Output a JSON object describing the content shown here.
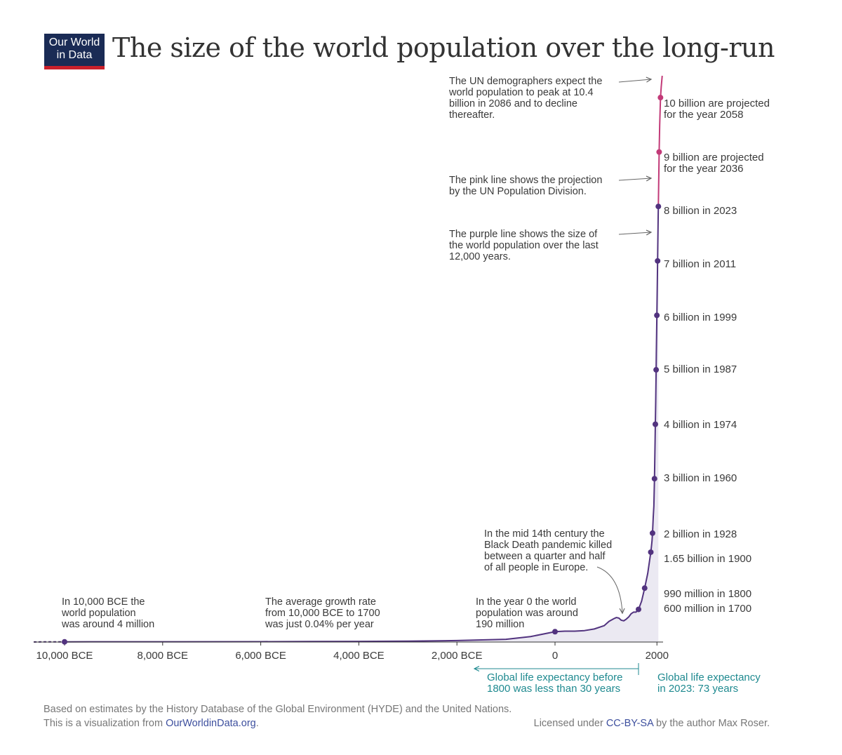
{
  "logo": {
    "line1": "Our World",
    "line2": "in Data"
  },
  "title": "The size of the world population over the long-run",
  "chart_data": {
    "type": "line",
    "xlim": [
      -11000,
      2100
    ],
    "ylim": [
      0,
      10.4
    ],
    "x_ticks": [
      {
        "x": -10000,
        "label": "10,000 BCE"
      },
      {
        "x": -8000,
        "label": "8,000 BCE"
      },
      {
        "x": -6000,
        "label": "6,000 BCE"
      },
      {
        "x": -4000,
        "label": "4,000 BCE"
      },
      {
        "x": -2000,
        "label": "2,000 BCE"
      },
      {
        "x": 0,
        "label": "0"
      },
      {
        "x": 2000,
        "label": "2000"
      }
    ],
    "series": [
      {
        "color": "#52337f",
        "points": [
          [
            -11000,
            0.002
          ],
          [
            -10000,
            0.004
          ],
          [
            -8000,
            0.005
          ],
          [
            -6000,
            0.007
          ],
          [
            -5000,
            0.009
          ],
          [
            -4000,
            0.012
          ],
          [
            -3000,
            0.016
          ],
          [
            -2000,
            0.027
          ],
          [
            -1500,
            0.038
          ],
          [
            -1000,
            0.05
          ],
          [
            -500,
            0.1
          ],
          [
            0,
            0.19
          ],
          [
            200,
            0.2
          ],
          [
            400,
            0.2
          ],
          [
            600,
            0.21
          ],
          [
            800,
            0.24
          ],
          [
            1000,
            0.3
          ],
          [
            1100,
            0.38
          ],
          [
            1200,
            0.43
          ],
          [
            1250,
            0.45
          ],
          [
            1300,
            0.44
          ],
          [
            1350,
            0.4
          ],
          [
            1400,
            0.39
          ],
          [
            1450,
            0.42
          ],
          [
            1500,
            0.46
          ],
          [
            1550,
            0.52
          ],
          [
            1600,
            0.55
          ],
          [
            1650,
            0.55
          ],
          [
            1700,
            0.6
          ],
          [
            1750,
            0.75
          ],
          [
            1800,
            0.99
          ],
          [
            1850,
            1.26
          ],
          [
            1900,
            1.65
          ],
          [
            1910,
            1.75
          ],
          [
            1920,
            1.86
          ],
          [
            1928,
            2.0
          ],
          [
            1940,
            2.3
          ],
          [
            1950,
            2.5
          ],
          [
            1960,
            3.0
          ],
          [
            1970,
            3.7
          ],
          [
            1974,
            4.0
          ],
          [
            1980,
            4.4
          ],
          [
            1987,
            5.0
          ],
          [
            1990,
            5.3
          ],
          [
            1999,
            6.0
          ],
          [
            2005,
            6.5
          ],
          [
            2011,
            7.0
          ],
          [
            2020,
            7.8
          ],
          [
            2023,
            8.0
          ]
        ]
      },
      {
        "color": "#c23a78",
        "points": [
          [
            2023,
            8.0
          ],
          [
            2036,
            9.0
          ],
          [
            2045,
            9.5
          ],
          [
            2058,
            10.0
          ],
          [
            2070,
            10.2
          ],
          [
            2086,
            10.4
          ]
        ]
      }
    ],
    "milestones": [
      {
        "x": 1700,
        "y": 0.6,
        "label": "600 million in 1700",
        "color": "#52337f"
      },
      {
        "x": 1800,
        "y": 0.99,
        "label": "990 million in 1800",
        "color": "#52337f"
      },
      {
        "x": 1900,
        "y": 1.65,
        "label": "1.65 billion in 1900",
        "color": "#52337f"
      },
      {
        "x": 1928,
        "y": 2.0,
        "label": "2 billion in 1928",
        "color": "#52337f"
      },
      {
        "x": 1960,
        "y": 3.0,
        "label": "3 billion in 1960",
        "color": "#52337f"
      },
      {
        "x": 1974,
        "y": 4.0,
        "label": "4 billion in 1974",
        "color": "#52337f"
      },
      {
        "x": 1987,
        "y": 5.0,
        "label": "5 billion in 1987",
        "color": "#52337f"
      },
      {
        "x": 1999,
        "y": 6.0,
        "label": "6 billion in 1999",
        "color": "#52337f"
      },
      {
        "x": 2011,
        "y": 7.0,
        "label": "7 billion in 2011",
        "color": "#52337f"
      },
      {
        "x": 2023,
        "y": 8.0,
        "label": "8 billion in 2023",
        "color": "#52337f"
      },
      {
        "x": 2036,
        "y": 9.0,
        "label": "9 billion are projected\nfor the year 2036",
        "color": "#c23a78"
      },
      {
        "x": 2058,
        "y": 10.0,
        "label": "10 billion are projected\nfor the year 2058",
        "color": "#c23a78"
      }
    ],
    "extra_points": [
      {
        "x": -10000,
        "y": 0.004
      },
      {
        "x": 0,
        "y": 0.19
      }
    ],
    "annotations": [
      {
        "text": "In 10,000 BCE the\nworld population\nwas around 4 million"
      },
      {
        "text": "The average growth rate\nfrom 10,000 BCE to 1700\nwas just 0.04% per year"
      },
      {
        "text": "In the year 0 the world\npopulation was around\n190 million"
      },
      {
        "text": "In the mid 14th century the\nBlack Death pandemic killed\nbetween a quarter and half\nof all people in Europe."
      },
      {
        "text": "The UN demographers expect the\nworld population to peak at 10.4\nbillion in 2086 and to decline\nthereafter."
      },
      {
        "text": "The pink line shows the projection\nby the UN Population Division."
      },
      {
        "text": "The purple line shows the size of\nthe world population over the last\n12,000 years."
      }
    ],
    "life_expectancy": {
      "before": "Global life expectancy before\n1800 was less than 30 years",
      "now": "Global life expectancy\nin 2023: 73 years"
    },
    "colors": {
      "historic": "#52337f",
      "projection": "#c23a78",
      "area": "#ebe9f2",
      "teal": "#1f8a90"
    }
  },
  "footer": {
    "source": "Based on estimates by the History Database of the Global Environment (HYDE) and the United Nations.",
    "viz_prefix": "This is a visualization from ",
    "viz_link": "OurWorldinData.org",
    "viz_suffix": ".",
    "license_prefix": "Licensed under ",
    "license_link": "CC-BY-SA",
    "license_suffix": " by the author Max Roser."
  }
}
